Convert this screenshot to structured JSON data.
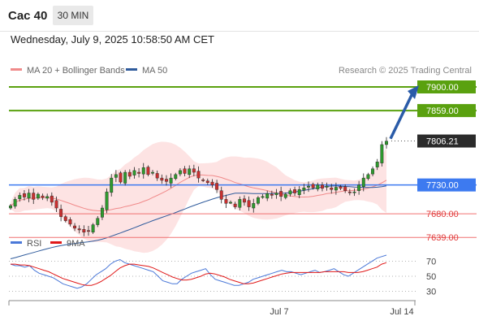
{
  "header": {
    "instrument": "Cac 40",
    "timeframe_button": "30 MIN",
    "datetime": "Wednesday, July 9, 2025 10:58:50 AM CET"
  },
  "legend": {
    "items": [
      {
        "label": "MA 20 + Bollinger Bands",
        "color": "#f08a8a"
      },
      {
        "label": "MA 50",
        "color": "#2f5b9c"
      }
    ],
    "credit": "Research © 2025 Trading Central"
  },
  "colors": {
    "resistance": "#5aa10f",
    "support_line": "#3d7af0",
    "support_red": "#f07070",
    "price_label_bg": "#2b2b2b",
    "bollinger_fill": "#fde3e3",
    "candle_up": "#2e9a2e",
    "candle_down": "#c93030",
    "arrow": "#2a5ba8",
    "rsi": "#4a78d8",
    "rsi_ma": "#e01818"
  },
  "chart_data": [
    {
      "type": "candlestick",
      "title": "Cac 40",
      "timeframe": "30 MIN",
      "price_levels": [
        {
          "value": 7900.0,
          "label": "7900.00",
          "kind": "resistance"
        },
        {
          "value": 7859.0,
          "label": "7859.00",
          "kind": "resistance"
        },
        {
          "value": 7806.21,
          "label": "7806.21",
          "kind": "last-price"
        },
        {
          "value": 7730.0,
          "label": "7730.00",
          "kind": "pivot"
        },
        {
          "value": 7680.0,
          "label": "7680.00",
          "kind": "support"
        },
        {
          "value": 7639.0,
          "label": "7639.00",
          "kind": "support"
        }
      ],
      "x_tick_labels": [
        "Jul 7",
        "Jul 14"
      ],
      "series": [
        {
          "name": "MA 20 + Bollinger Bands",
          "values": []
        },
        {
          "name": "MA 50",
          "values": []
        }
      ],
      "closes": [
        7694,
        7705,
        7712,
        7709,
        7716,
        7705,
        7714,
        7708,
        7710,
        7700,
        7690,
        7675,
        7668,
        7662,
        7655,
        7652,
        7648,
        7650,
        7661,
        7672,
        7690,
        7718,
        7742,
        7748,
        7735,
        7752,
        7745,
        7755,
        7750,
        7760,
        7748,
        7752,
        7742,
        7738,
        7736,
        7742,
        7748,
        7755,
        7750,
        7758,
        7752,
        7742,
        7738,
        7734,
        7730,
        7722,
        7705,
        7698,
        7700,
        7692,
        7705,
        7700,
        7692,
        7698,
        7708,
        7710,
        7715,
        7712,
        7716,
        7710,
        7714,
        7720,
        7716,
        7722,
        7725,
        7728,
        7725,
        7730,
        7724,
        7728,
        7722,
        7726,
        7724,
        7720,
        7717,
        7718,
        7730,
        7742,
        7748,
        7758,
        7770,
        7800,
        7806
      ],
      "ylim": [
        7580,
        7935
      ]
    },
    {
      "type": "line",
      "title": "RSI",
      "series": [
        {
          "name": "RSI",
          "values": [
            66,
            64,
            64,
            62,
            64,
            58,
            54,
            52,
            50,
            48,
            44,
            40,
            38,
            36,
            34,
            36,
            40,
            46,
            52,
            56,
            60,
            66,
            70,
            72,
            68,
            66,
            64,
            62,
            60,
            58,
            56,
            50,
            44,
            42,
            40,
            40,
            46,
            50,
            54,
            56,
            58,
            60,
            52,
            46,
            44,
            42,
            40,
            38,
            38,
            40,
            42,
            46,
            48,
            50,
            52,
            54,
            56,
            58,
            56,
            56,
            54,
            52,
            54,
            56,
            58,
            55,
            56,
            58,
            60,
            56,
            52,
            50,
            54,
            58,
            62,
            66,
            70,
            74,
            76,
            78
          ]
        },
        {
          "name": "9MA",
          "values": [
            66,
            66,
            65,
            65,
            64,
            62,
            60,
            58,
            56,
            53,
            50,
            47,
            45,
            43,
            41,
            39,
            38,
            38,
            40,
            43,
            47,
            51,
            56,
            61,
            64,
            66,
            66,
            65,
            64,
            63,
            61,
            58,
            55,
            52,
            49,
            47,
            45,
            45,
            46,
            48,
            50,
            53,
            54,
            53,
            51,
            49,
            46,
            44,
            42,
            40,
            40,
            41,
            43,
            45,
            47,
            49,
            51,
            53,
            54,
            55,
            55,
            55,
            55,
            55,
            55,
            55,
            56,
            56,
            56,
            56,
            56,
            55,
            55,
            55,
            56,
            58,
            60,
            62,
            66,
            68
          ]
        }
      ],
      "levels": [
        70,
        50,
        30
      ],
      "ylim": [
        20,
        82
      ],
      "x_tick_labels": [
        "Jul 7",
        "Jul 14"
      ]
    }
  ]
}
